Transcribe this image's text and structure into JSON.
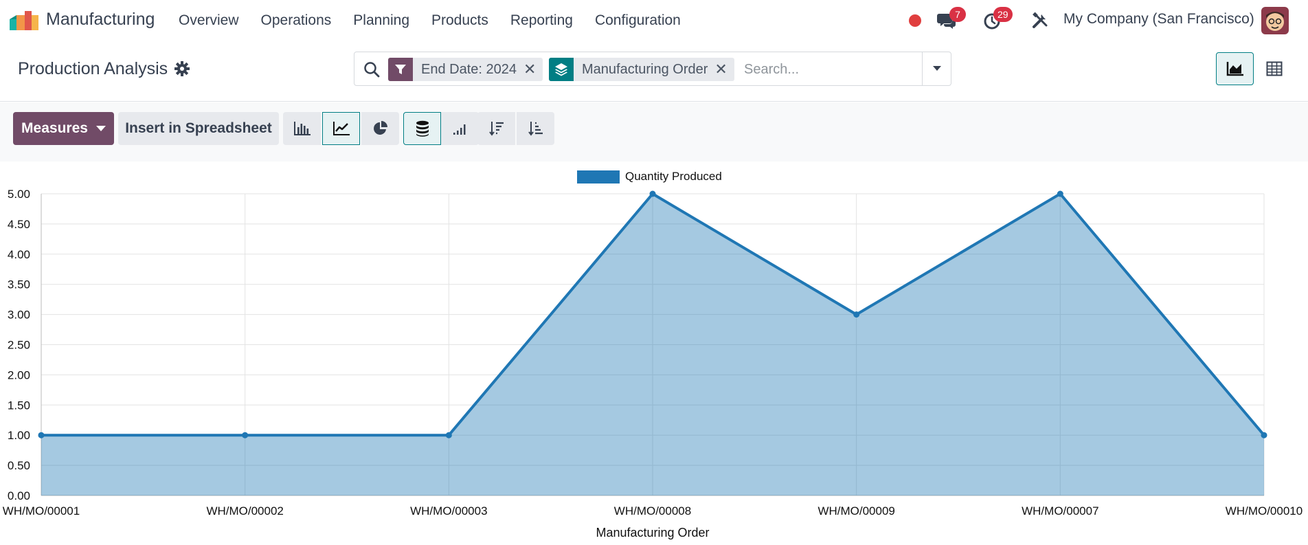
{
  "nav": {
    "app_name": "Manufacturing",
    "menu": [
      "Overview",
      "Operations",
      "Planning",
      "Products",
      "Reporting",
      "Configuration"
    ],
    "messages_badge": "7",
    "activities_badge": "29",
    "company": "My Company (San Francisco)"
  },
  "control": {
    "title": "Production Analysis",
    "facets": [
      {
        "label": "End Date: 2024",
        "icon": "filter-icon",
        "color": "#714b67"
      },
      {
        "label": "Manufacturing Order",
        "icon": "group-by-layers-icon",
        "color": "#017e84"
      }
    ],
    "search_placeholder": "Search..."
  },
  "toolbar": {
    "measures_label": "Measures",
    "insert_label": "Insert in Spreadsheet"
  },
  "colors": {
    "brand": "#714b67",
    "accent": "#017e84",
    "series": "#1f77b4",
    "badge": "#d93144"
  },
  "chart_data": {
    "type": "area",
    "categories": [
      "WH/MO/00001",
      "WH/MO/00002",
      "WH/MO/00003",
      "WH/MO/00008",
      "WH/MO/00009",
      "WH/MO/00007",
      "WH/MO/00010"
    ],
    "series": [
      {
        "name": "Quantity Produced",
        "values": [
          1,
          1,
          1,
          5,
          3,
          5,
          1
        ]
      }
    ],
    "xlabel": "Manufacturing Order",
    "ylabel": "",
    "ylim": [
      0,
      5
    ],
    "yticks": [
      "0.00",
      "0.50",
      "1.00",
      "1.50",
      "2.00",
      "2.50",
      "3.00",
      "3.50",
      "4.00",
      "4.50",
      "5.00"
    ],
    "grid": true,
    "legend": "top-center"
  }
}
